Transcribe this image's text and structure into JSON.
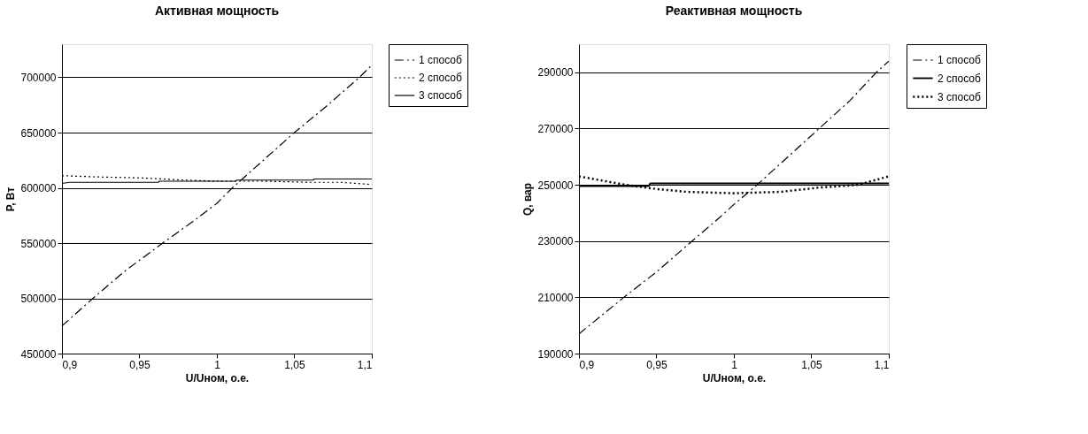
{
  "chart_data": [
    {
      "type": "line",
      "title": "Активная мощность",
      "xlabel": "U/Uном, о.е.",
      "ylabel": "P, Вт",
      "xlim": [
        0.9,
        1.1
      ],
      "xticks": [
        {
          "value": 0.9,
          "label": "0,9"
        },
        {
          "value": 0.95,
          "label": "0,95"
        },
        {
          "value": 1,
          "label": "1"
        },
        {
          "value": 1.05,
          "label": "1,05"
        },
        {
          "value": 1.1,
          "label": "1,1"
        }
      ],
      "ylim": [
        450000,
        730000
      ],
      "yticks": [
        450000,
        500000,
        550000,
        600000,
        650000,
        700000
      ],
      "grid": "y",
      "legend": "right",
      "marker": "none",
      "series": [
        {
          "name": "1 способ",
          "color": "#000000",
          "line_style": "dashed",
          "x": [
            0.9,
            0.92,
            0.94,
            0.965,
            0.985,
            1.0,
            1.01,
            1.03,
            1.05,
            1.07,
            1.092,
            1.1
          ],
          "values": [
            475000,
            500000,
            524000,
            550000,
            570000,
            586000,
            600000,
            625000,
            650000,
            673000,
            700000,
            711000
          ]
        },
        {
          "name": "2 способ",
          "color": "#000000",
          "line_style": "dotted",
          "x": [
            0.9,
            0.92,
            0.95,
            0.98,
            1.0,
            1.03,
            1.06,
            1.08,
            1.1
          ],
          "values": [
            611000,
            610000,
            609000,
            607000,
            606000,
            606000,
            605000,
            605000,
            603000
          ]
        },
        {
          "name": "3 способ",
          "color": "#000000",
          "line_style": "solid",
          "x": [
            0.9,
            0.905,
            0.962,
            0.963,
            1.012,
            1.013,
            1.062,
            1.063,
            1.1
          ],
          "values": [
            604000,
            605000,
            605000,
            606000,
            606000,
            607000,
            607000,
            608000,
            608000
          ]
        }
      ]
    },
    {
      "type": "line",
      "title": "Реактивная мощность",
      "xlabel": "U/Uном, о.е.",
      "ylabel": "Q, вар",
      "xlim": [
        0.9,
        1.1
      ],
      "xticks": [
        {
          "value": 0.9,
          "label": "0,9"
        },
        {
          "value": 0.95,
          "label": "0,95"
        },
        {
          "value": 1,
          "label": "1"
        },
        {
          "value": 1.05,
          "label": "1,05"
        },
        {
          "value": 1.1,
          "label": "1,1"
        }
      ],
      "ylim": [
        190000,
        300000
      ],
      "yticks": [
        190000,
        210000,
        230000,
        250000,
        270000,
        290000
      ],
      "grid": "y",
      "legend": "right",
      "marker": "none",
      "series": [
        {
          "name": "1 способ",
          "color": "#000000",
          "line_style": "dashed",
          "x": [
            0.9,
            0.929,
            0.95,
            0.973,
            0.99,
            1.0,
            1.015,
            1.035,
            1.055,
            1.075,
            1.092,
            1.1
          ],
          "values": [
            197000,
            210000,
            219000,
            230000,
            238000,
            243000,
            250000,
            260000,
            270000,
            280000,
            290000,
            294000
          ]
        },
        {
          "name": "2 способ",
          "color": "#000000",
          "line_style": "solid",
          "x": [
            0.9,
            0.945,
            0.946,
            1.1
          ],
          "values": [
            249500,
            249500,
            250500,
            250500
          ]
        },
        {
          "name": "3 способ",
          "color": "#000000",
          "line_style": "dotted",
          "x": [
            0.9,
            0.93,
            0.95,
            0.97,
            1.0,
            1.03,
            1.055,
            1.08,
            1.1
          ],
          "values": [
            253000,
            250000,
            248500,
            247500,
            247000,
            247500,
            249000,
            250000,
            253000
          ]
        }
      ]
    }
  ]
}
